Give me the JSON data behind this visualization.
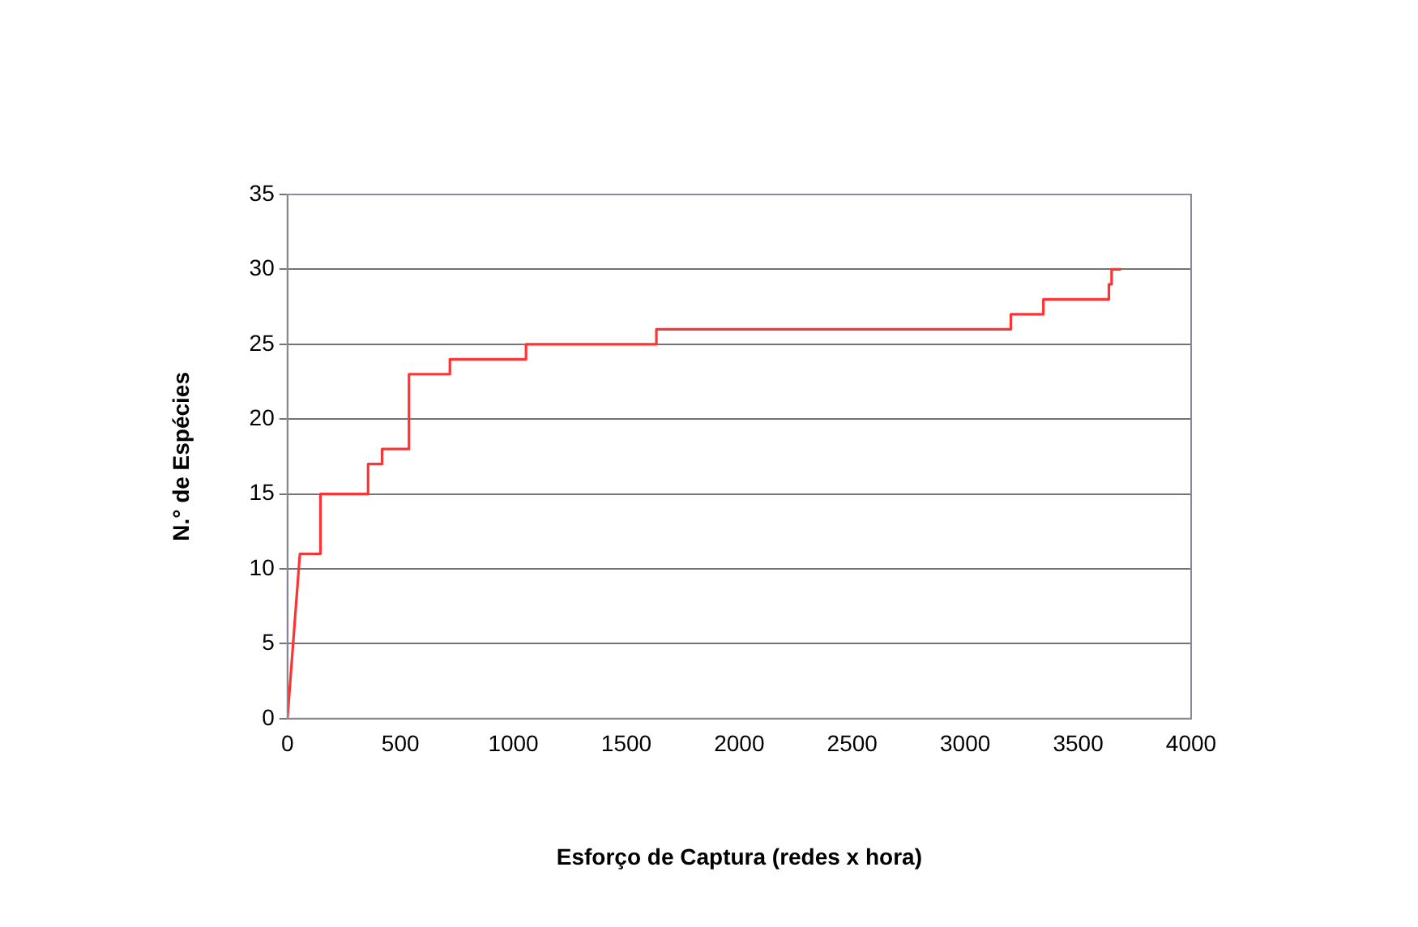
{
  "chart_data": {
    "type": "line",
    "xlabel": "Esforço de Captura (redes x hora)",
    "ylabel": "N.° de Espécies",
    "x": [
      0,
      55,
      146,
      146,
      357,
      357,
      419,
      419,
      538,
      538,
      719,
      719,
      1056,
      1056,
      1633,
      1633,
      3202,
      3202,
      3346,
      3346,
      3636,
      3636,
      3648,
      3648,
      3690
    ],
    "series": [
      {
        "color": "#ff3333",
        "values": [
          0,
          11,
          11,
          15,
          15,
          17,
          17,
          18,
          18,
          23,
          23,
          24,
          24,
          25,
          25,
          26,
          26,
          27,
          27,
          28,
          28,
          29,
          29,
          30,
          30
        ]
      }
    ],
    "xlim": [
      0,
      4000
    ],
    "xticks": [
      0,
      500,
      1000,
      1500,
      2000,
      2500,
      3000,
      3500,
      4000
    ],
    "ylim": [
      0,
      35
    ],
    "yticks": [
      0,
      5,
      10,
      15,
      20,
      25,
      30,
      35
    ],
    "grid": "y",
    "legend": false,
    "marker": "none",
    "line_style": "solid"
  }
}
